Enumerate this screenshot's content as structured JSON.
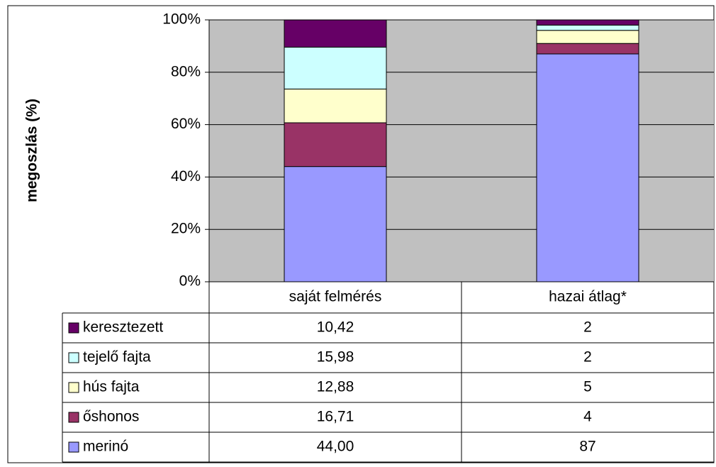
{
  "chart_data": {
    "type": "stacked_bar",
    "y_label": "megoszlás (%)",
    "categories": [
      "saját felmérés",
      "hazai átlag*"
    ],
    "series": [
      {
        "name": "merinó",
        "color": "#9999ff",
        "values": [
          44.0,
          87
        ],
        "value_labels": [
          "44,00",
          "87"
        ]
      },
      {
        "name": "őshonos",
        "color": "#993366",
        "values": [
          16.71,
          4
        ],
        "value_labels": [
          "16,71",
          "4"
        ]
      },
      {
        "name": "hús fajta",
        "color": "#ffffcc",
        "values": [
          12.88,
          5
        ],
        "value_labels": [
          "12,88",
          "5"
        ]
      },
      {
        "name": "tejelő fajta",
        "color": "#ccffff",
        "values": [
          15.98,
          2
        ],
        "value_labels": [
          "15,98",
          "2"
        ]
      },
      {
        "name": "keresztezett",
        "color": "#660066",
        "values": [
          10.42,
          2
        ],
        "value_labels": [
          "10,42",
          "2"
        ]
      }
    ],
    "ylim": [
      0,
      100
    ],
    "yticks": [
      {
        "value": 0,
        "label": "0%"
      },
      {
        "value": 20,
        "label": "20%"
      },
      {
        "value": 40,
        "label": "40%"
      },
      {
        "value": 60,
        "label": "60%"
      },
      {
        "value": 80,
        "label": "80%"
      },
      {
        "value": 100,
        "label": "100%"
      }
    ],
    "grid": true,
    "plot_background": "#c0c0c0"
  }
}
